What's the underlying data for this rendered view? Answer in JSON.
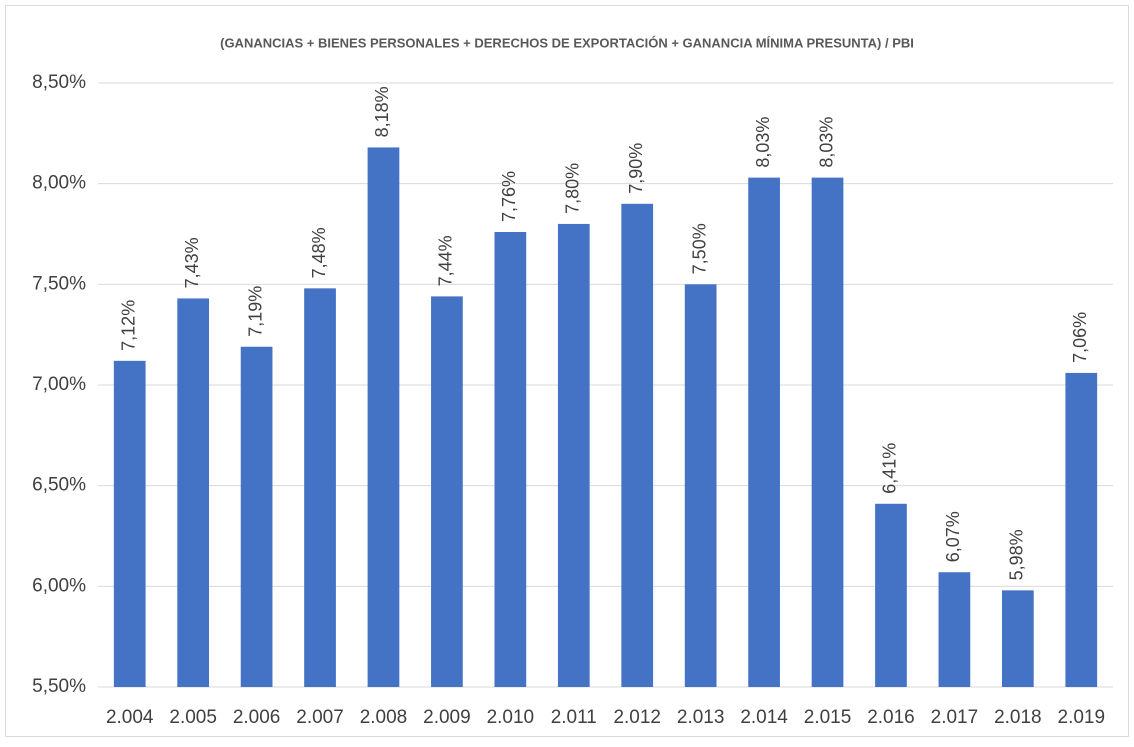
{
  "chart_data": {
    "type": "bar",
    "title": "(GANANCIAS + BIENES PERSONALES + DERECHOS DE EXPORTACIÓN + GANANCIA MÍNIMA PRESUNTA) / PBI",
    "categories": [
      "2.004",
      "2.005",
      "2.006",
      "2.007",
      "2.008",
      "2.009",
      "2.010",
      "2.011",
      "2.012",
      "2.013",
      "2.014",
      "2.015",
      "2.016",
      "2.017",
      "2.018",
      "2.019"
    ],
    "values": [
      7.12,
      7.43,
      7.19,
      7.48,
      8.18,
      7.44,
      7.76,
      7.8,
      7.9,
      7.5,
      8.03,
      8.03,
      6.41,
      6.07,
      5.98,
      7.06
    ],
    "value_labels": [
      "7,12%",
      "7,43%",
      "7,19%",
      "7,48%",
      "8,18%",
      "7,44%",
      "7,76%",
      "7,80%",
      "7,90%",
      "7,50%",
      "8,03%",
      "8,03%",
      "6,41%",
      "6,07%",
      "5,98%",
      "7,06%"
    ],
    "color": "#4472c4",
    "ylim": [
      5.5,
      8.5
    ],
    "yticks": [
      {
        "value": 5.5,
        "label": "5,50%"
      },
      {
        "value": 6.0,
        "label": "6,00%"
      },
      {
        "value": 6.5,
        "label": "6,50%"
      },
      {
        "value": 7.0,
        "label": "7,00%"
      },
      {
        "value": 7.5,
        "label": "7,50%"
      },
      {
        "value": 8.0,
        "label": "8,00%"
      },
      {
        "value": 8.5,
        "label": "8,50%"
      }
    ],
    "grid": true
  }
}
